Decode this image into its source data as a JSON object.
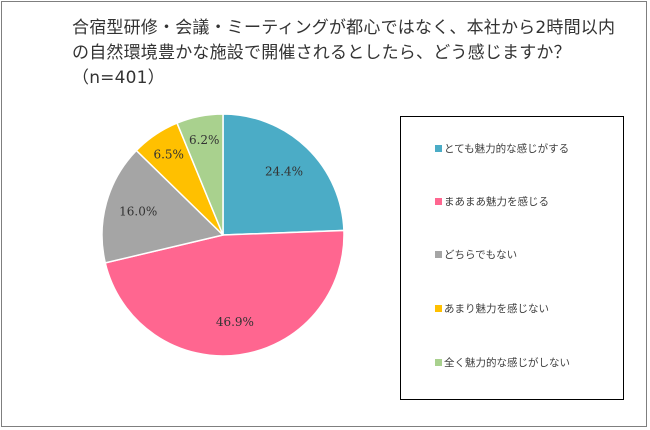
{
  "chart_data": {
    "type": "pie",
    "title": "合宿型研修・会議・ミーティングが都心ではなく、本社から2時間以内の自然環境豊かな施設で開催されるとしたら、どう感じますか？（n=401）",
    "categories": [
      "とても魅力的な感じがする",
      "まあまあ魅力を感じる",
      "どちらでもない",
      "あまり魅力を感じない",
      "全く魅力的な感じがしない"
    ],
    "values": [
      24.4,
      46.9,
      16.0,
      6.5,
      6.2
    ],
    "data_labels": [
      "24.4%",
      "46.9%",
      "16.0%",
      "6.5%",
      "6.2%"
    ],
    "colors": [
      "#4bacc6",
      "#ff6690",
      "#a5a5a5",
      "#ffc000",
      "#a9d18e"
    ],
    "legend_position": "right",
    "start_angle_deg": 0,
    "direction": "clockwise"
  }
}
